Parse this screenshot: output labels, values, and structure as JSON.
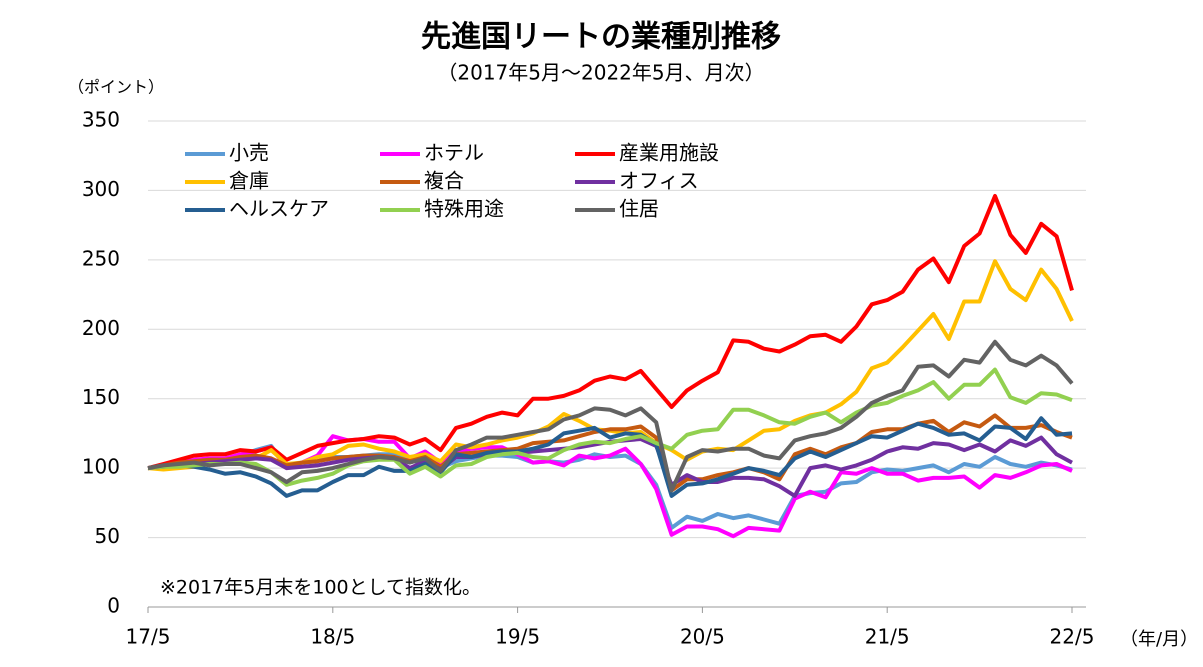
{
  "chart_data": {
    "type": "line",
    "title": "先進国リートの業種別推移",
    "subtitle": "（2017年5月～2022年5月、月次）",
    "y_label": "（ポイント）",
    "x_label": "（年/月）",
    "annotation": "※2017年5月末を100として指数化。",
    "categories": [
      "17/5",
      null,
      null,
      null,
      null,
      null,
      null,
      null,
      null,
      null,
      null,
      null,
      "18/5",
      null,
      null,
      null,
      null,
      null,
      null,
      null,
      null,
      null,
      null,
      null,
      "19/5",
      null,
      null,
      null,
      null,
      null,
      null,
      null,
      null,
      null,
      null,
      null,
      "20/5",
      null,
      null,
      null,
      null,
      null,
      null,
      null,
      null,
      null,
      null,
      null,
      "21/5",
      null,
      null,
      null,
      null,
      null,
      null,
      null,
      null,
      null,
      null,
      null,
      "22/5"
    ],
    "ylim": [
      0,
      350
    ],
    "yticks": [
      0,
      50,
      100,
      150,
      200,
      250,
      300,
      350
    ],
    "grid": true,
    "series": [
      {
        "name": "小売",
        "color": "#5b9bd5",
        "values": [
          100,
          101,
          103,
          104,
          105,
          105,
          109,
          113,
          116,
          101,
          104,
          105,
          108,
          108,
          109,
          110,
          110,
          106,
          103,
          100,
          105,
          107,
          109,
          109,
          108,
          104,
          105,
          104,
          106,
          110,
          108,
          109,
          103,
          88,
          57,
          65,
          62,
          67,
          64,
          66,
          63,
          60,
          80,
          82,
          83,
          89,
          90,
          97,
          99,
          98,
          100,
          102,
          97,
          103,
          101,
          108,
          103,
          101,
          104,
          102,
          99
        ]
      },
      {
        "name": "ホテル",
        "color": "#ff00ff",
        "values": [
          100,
          102,
          104,
          106,
          107,
          107,
          110,
          112,
          115,
          100,
          104,
          109,
          123,
          120,
          121,
          119,
          119,
          107,
          112,
          104,
          112,
          114,
          115,
          115,
          110,
          104,
          105,
          102,
          109,
          107,
          109,
          114,
          103,
          85,
          52,
          58,
          58,
          56,
          51,
          57,
          56,
          55,
          78,
          83,
          79,
          97,
          96,
          100,
          96,
          96,
          91,
          93,
          93,
          94,
          86,
          95,
          93,
          97,
          102,
          103,
          98
        ]
      },
      {
        "name": "産業用施設",
        "color": "#ff0000",
        "values": [
          100,
          103,
          106,
          109,
          110,
          110,
          113,
          112,
          115,
          106,
          111,
          116,
          118,
          120,
          121,
          123,
          122,
          117,
          121,
          113,
          129,
          132,
          137,
          140,
          138,
          150,
          150,
          152,
          156,
          163,
          166,
          164,
          170,
          157,
          144,
          156,
          163,
          169,
          192,
          191,
          186,
          184,
          189,
          195,
          196,
          191,
          202,
          218,
          221,
          227,
          243,
          251,
          234,
          260,
          269,
          296,
          268,
          255,
          276,
          267,
          228
        ]
      },
      {
        "name": "倉庫",
        "color": "#ffc000",
        "values": [
          100,
          99,
          100,
          101,
          103,
          104,
          106,
          107,
          113,
          103,
          104,
          108,
          110,
          116,
          117,
          114,
          112,
          108,
          110,
          105,
          117,
          115,
          117,
          120,
          122,
          125,
          130,
          139,
          134,
          128,
          127,
          125,
          126,
          118,
          113,
          106,
          112,
          114,
          113,
          120,
          127,
          128,
          134,
          138,
          140,
          146,
          155,
          172,
          176,
          187,
          199,
          211,
          193,
          220,
          220,
          249,
          229,
          221,
          243,
          229,
          206
        ]
      },
      {
        "name": "複合",
        "color": "#c55a11",
        "values": [
          100,
          102,
          104,
          105,
          106,
          106,
          108,
          109,
          107,
          102,
          104,
          105,
          107,
          108,
          109,
          109,
          108,
          105,
          108,
          101,
          110,
          111,
          112,
          113,
          114,
          118,
          119,
          120,
          123,
          126,
          128,
          128,
          130,
          122,
          84,
          92,
          92,
          95,
          97,
          100,
          97,
          92,
          110,
          114,
          110,
          115,
          118,
          126,
          128,
          128,
          132,
          134,
          126,
          133,
          130,
          138,
          129,
          129,
          131,
          126,
          122
        ]
      },
      {
        "name": "オフィス",
        "color": "#7030a0",
        "values": [
          100,
          101,
          102,
          103,
          104,
          105,
          106,
          107,
          106,
          100,
          101,
          102,
          104,
          106,
          107,
          108,
          107,
          100,
          105,
          99,
          108,
          108,
          110,
          111,
          111,
          112,
          113,
          114,
          115,
          117,
          119,
          120,
          121,
          116,
          88,
          95,
          90,
          90,
          93,
          93,
          92,
          87,
          80,
          100,
          102,
          99,
          102,
          106,
          112,
          115,
          114,
          118,
          117,
          113,
          117,
          112,
          120,
          116,
          122,
          110,
          104
        ]
      },
      {
        "name": "ヘルスケア",
        "color": "#255e91",
        "values": [
          100,
          102,
          102,
          101,
          99,
          96,
          97,
          94,
          89,
          80,
          84,
          84,
          90,
          95,
          95,
          101,
          98,
          98,
          103,
          97,
          110,
          108,
          111,
          112,
          112,
          114,
          117,
          125,
          127,
          129,
          122,
          125,
          124,
          117,
          80,
          88,
          89,
          92,
          96,
          100,
          98,
          95,
          107,
          112,
          108,
          113,
          118,
          123,
          122,
          127,
          132,
          129,
          124,
          125,
          120,
          130,
          129,
          121,
          136,
          124,
          125
        ]
      },
      {
        "name": "特殊用途",
        "color": "#92d050",
        "values": [
          100,
          101,
          101,
          102,
          103,
          103,
          104,
          103,
          97,
          88,
          91,
          93,
          96,
          102,
          105,
          106,
          106,
          96,
          101,
          94,
          102,
          103,
          108,
          110,
          111,
          108,
          107,
          113,
          117,
          119,
          118,
          121,
          123,
          118,
          114,
          124,
          127,
          128,
          142,
          142,
          138,
          133,
          132,
          137,
          140,
          133,
          140,
          145,
          147,
          152,
          156,
          162,
          150,
          160,
          160,
          171,
          151,
          147,
          154,
          153,
          149
        ]
      },
      {
        "name": "住居",
        "color": "#636363",
        "values": [
          100,
          102,
          103,
          104,
          102,
          103,
          103,
          100,
          97,
          90,
          97,
          98,
          100,
          103,
          106,
          108,
          107,
          104,
          107,
          98,
          113,
          117,
          122,
          122,
          124,
          126,
          128,
          135,
          138,
          143,
          142,
          138,
          143,
          133,
          84,
          108,
          113,
          112,
          114,
          114,
          109,
          107,
          120,
          123,
          125,
          129,
          137,
          147,
          152,
          156,
          173,
          174,
          166,
          178,
          176,
          191,
          178,
          174,
          181,
          174,
          161
        ]
      }
    ]
  }
}
